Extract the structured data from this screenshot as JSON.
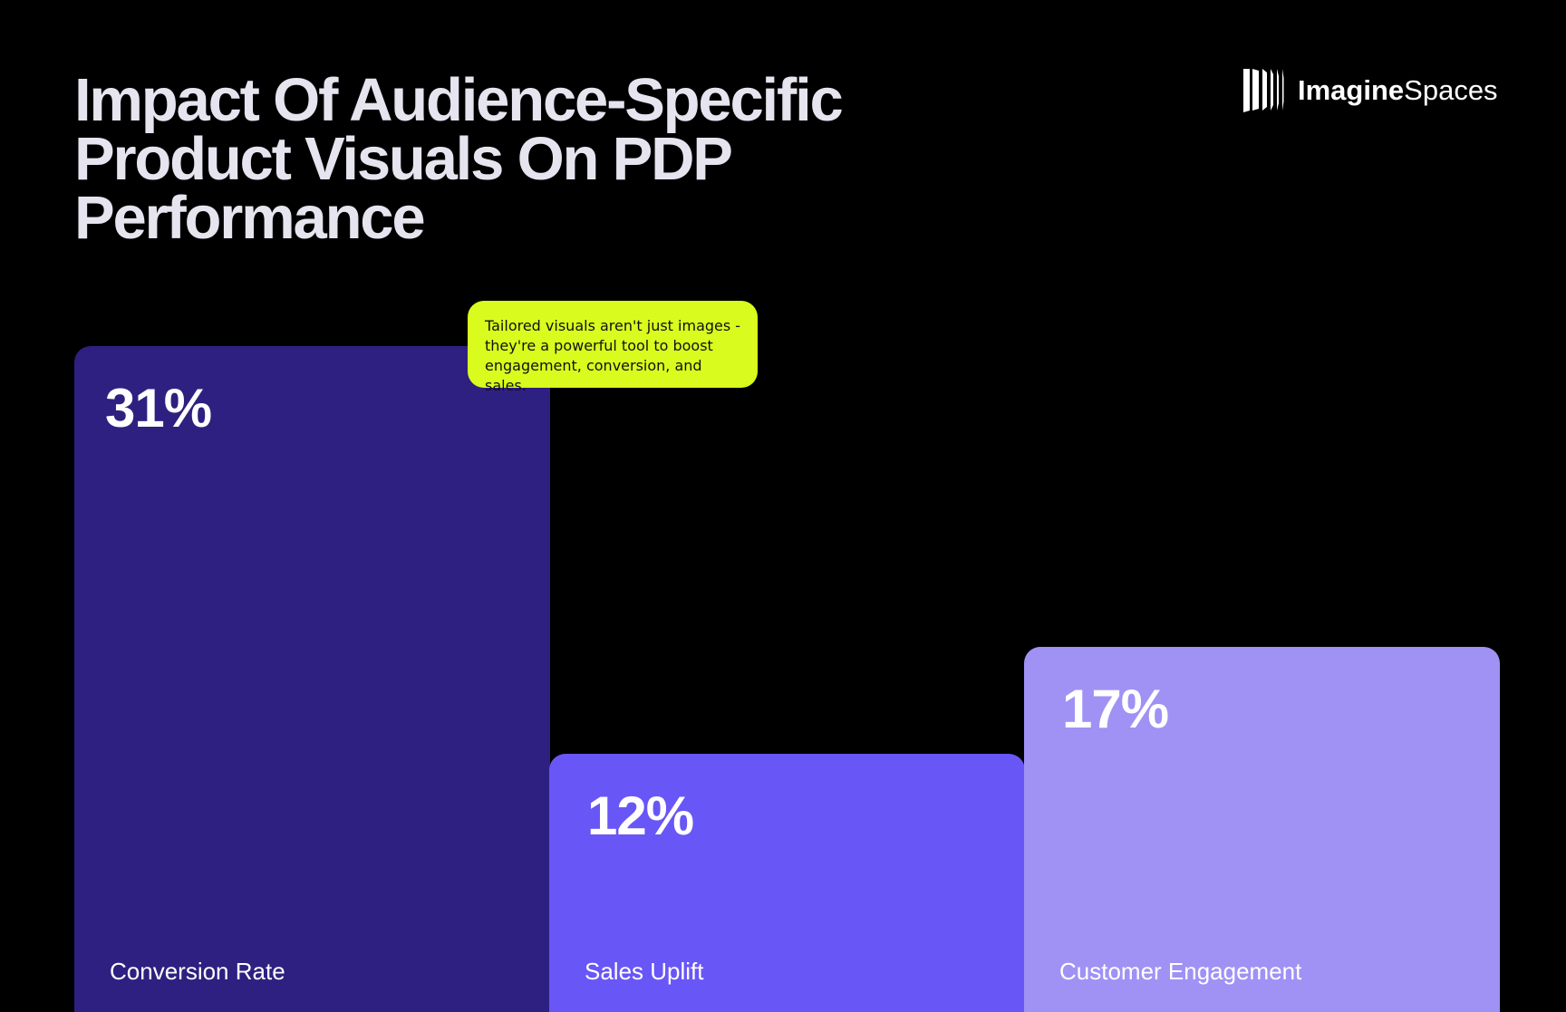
{
  "title": "Impact Of Audience-Specific\nProduct Visuals On PDP\nPerformance",
  "brand": {
    "name_bold": "Imagine",
    "name_light": "Spaces",
    "icon": "brand-logo-stripes-icon"
  },
  "callout": {
    "text": "Tailored visuals aren't just images - they're a powerful tool to boost engagement, conversion, and sales.",
    "color": "#d9fc1e"
  },
  "chart_data": {
    "type": "bar",
    "title": "Impact Of Audience-Specific Product Visuals On PDP Performance",
    "categories": [
      "Conversion Rate",
      "Sales Uplift",
      "Customer Engagement"
    ],
    "values": [
      31,
      12,
      17
    ],
    "value_labels": [
      "31%",
      "12%",
      "17%"
    ],
    "unit": "%",
    "ylim": [
      0,
      31
    ],
    "grid": false,
    "colors": [
      "#2e2080",
      "#6956f6",
      "#a091f5"
    ],
    "background": "#000000"
  }
}
